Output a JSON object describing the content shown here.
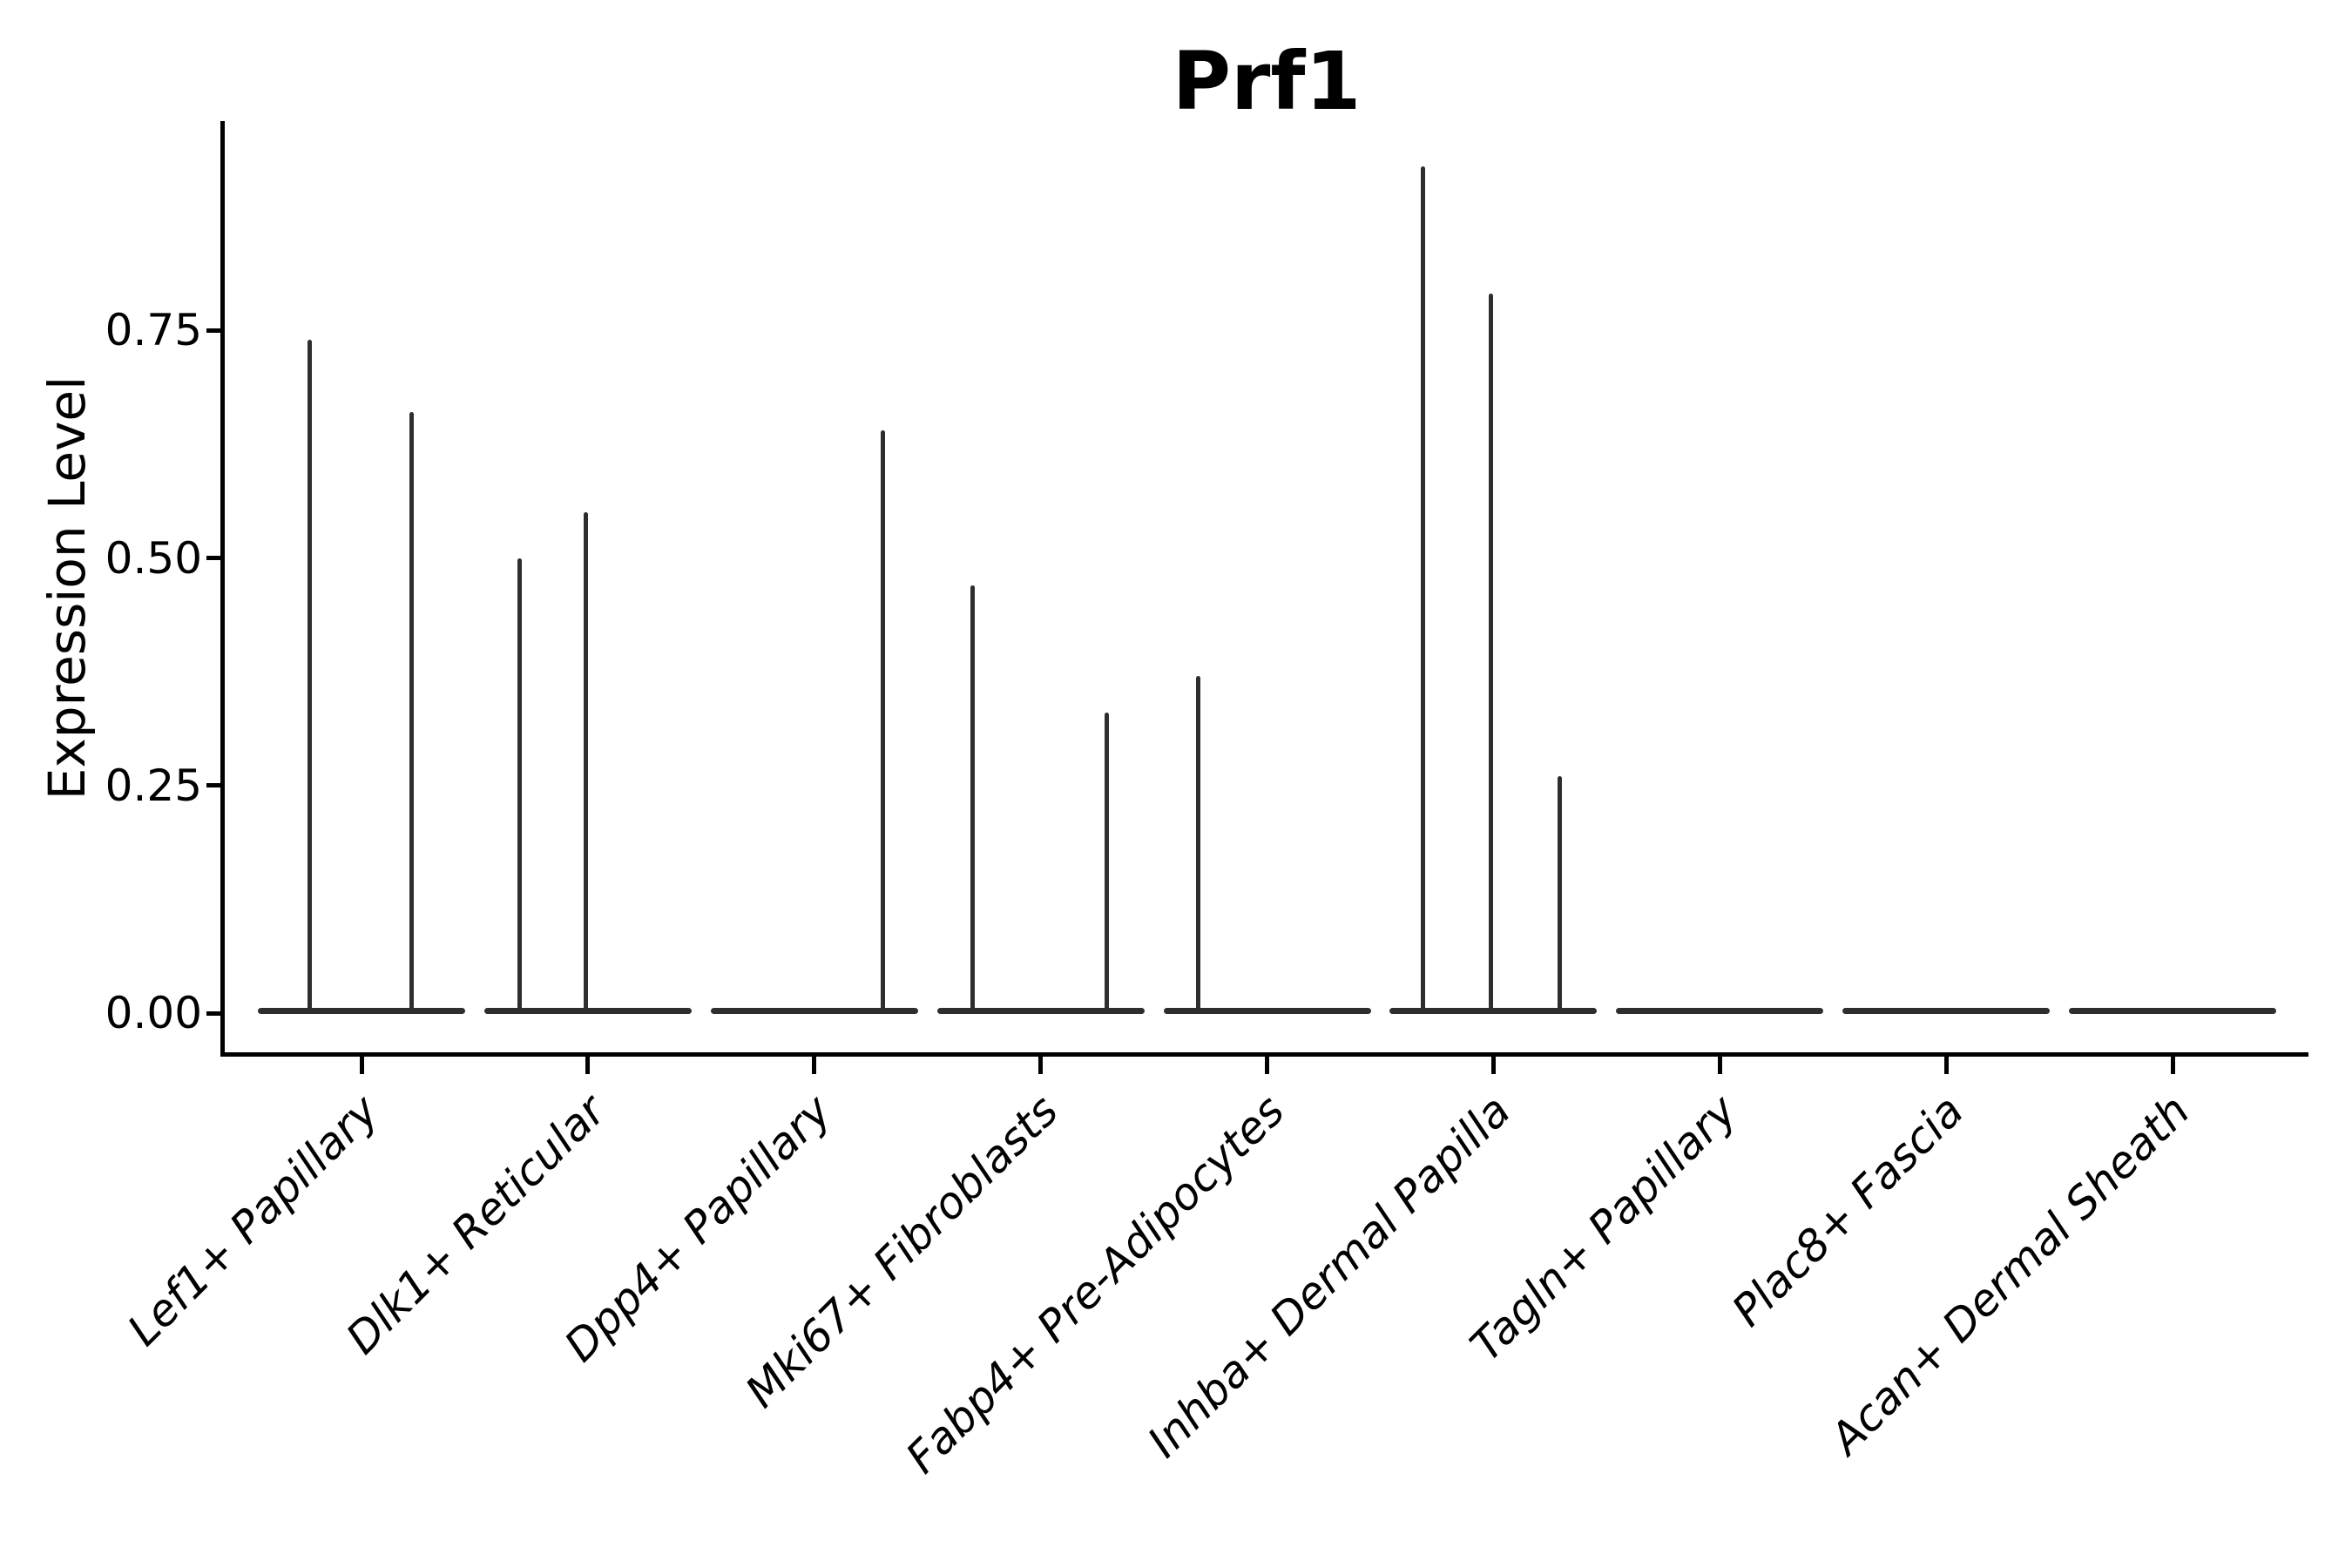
{
  "title": "Prf1",
  "colors": {
    "violin": "#2e2e2e",
    "axis": "#000000",
    "background": "#ffffff"
  },
  "chart_data": {
    "type": "violin",
    "title": "Prf1",
    "xlabel": "",
    "ylabel": "Expression Level",
    "ylim": [
      -0.05,
      0.98
    ],
    "grid": false,
    "legend": "none",
    "yticks": [
      {
        "label": "0.00",
        "value": 0.0
      },
      {
        "label": "0.25",
        "value": 0.25
      },
      {
        "label": "0.50",
        "value": 0.5
      },
      {
        "label": "0.75",
        "value": 0.75
      }
    ],
    "categories": [
      {
        "label": "Lef1+ Papillary",
        "spikes": [
          {
            "value": 0.74,
            "pos": 0.25
          },
          {
            "value": 0.66,
            "pos": 0.74
          }
        ]
      },
      {
        "label": "Dlk1+ Reticular",
        "spikes": [
          {
            "value": 0.5,
            "pos": 0.17
          },
          {
            "value": 0.55,
            "pos": 0.49
          }
        ]
      },
      {
        "label": "Dpp4+ Papillary",
        "spikes": [
          {
            "value": 0.64,
            "pos": 0.83
          }
        ]
      },
      {
        "label": "Mki67+ Fibroblasts",
        "spikes": [
          {
            "value": 0.47,
            "pos": 0.17
          },
          {
            "value": 0.33,
            "pos": 0.82
          }
        ]
      },
      {
        "label": "Fabp4+ Pre-Adipocytes",
        "spikes": [
          {
            "value": 0.37,
            "pos": 0.17
          }
        ]
      },
      {
        "label": "Inhba+ Dermal Papilla",
        "spikes": [
          {
            "value": 0.93,
            "pos": 0.16
          },
          {
            "value": 0.79,
            "pos": 0.49
          },
          {
            "value": 0.26,
            "pos": 0.82
          }
        ]
      },
      {
        "label": "Tagln+ Papillary",
        "spikes": []
      },
      {
        "label": "Plac8+ Fascia",
        "spikes": []
      },
      {
        "label": "Acan+ Dermal Sheath",
        "spikes": []
      }
    ],
    "description": "Violin plot of Prf1 expression level across dermal fibroblast subpopulations; expression is near zero in most cells (flat violin bases) with thin density spikes reaching the listed maximum expression values."
  }
}
